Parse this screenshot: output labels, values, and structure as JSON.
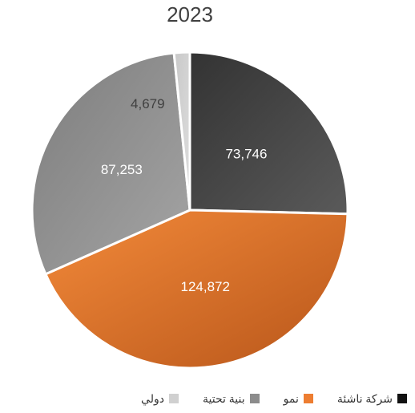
{
  "chart_data": {
    "type": "pie",
    "title": "2023",
    "categories": [
      "شركة ناشئة",
      "نمو",
      "بنية تحتية",
      "دولي"
    ],
    "values": [
      73746,
      124872,
      87253,
      4679
    ],
    "value_labels": [
      "73,746",
      "124,872",
      "87,253",
      "4,679"
    ],
    "colors": [
      "#404040",
      "#ed7d31",
      "#8c8c8c",
      "#d0d0d0"
    ]
  }
}
